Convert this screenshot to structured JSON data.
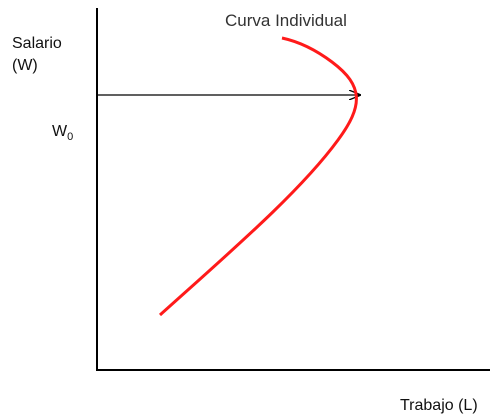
{
  "curve_label": "Curva Individual",
  "y_axis": {
    "label_line1": "Salario",
    "label_line2": "(W)",
    "level": {
      "base": "W",
      "subscript": "0"
    }
  },
  "x_axis": {
    "label": "Trabajo (L)"
  }
}
